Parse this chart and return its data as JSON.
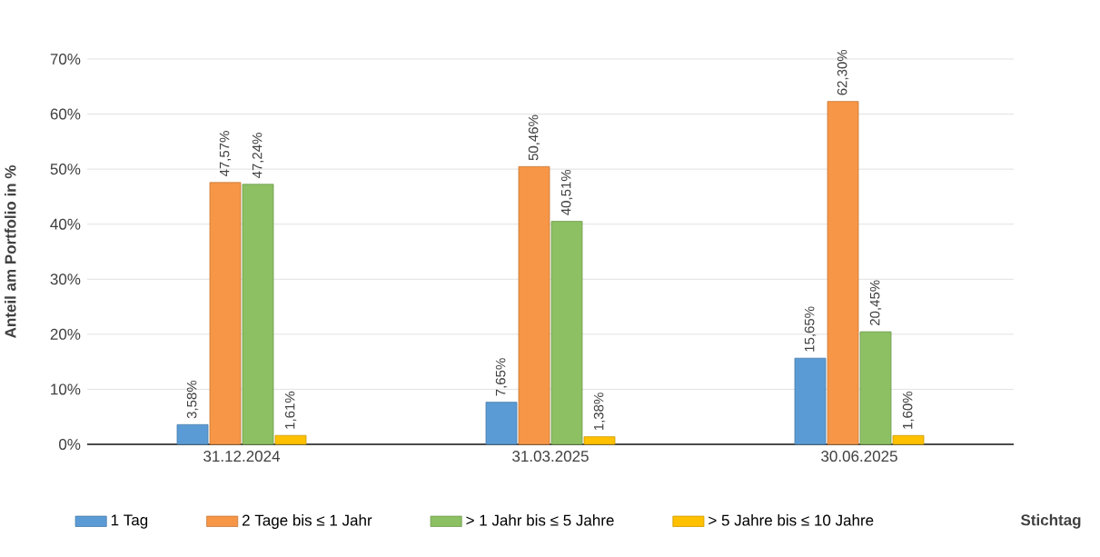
{
  "chart_data": {
    "type": "bar",
    "ylabel": "Anteil am Portfolio in %",
    "xlabel": "Stichtag",
    "categories": [
      "31.12.2024",
      "31.03.2025",
      "30.06.2025"
    ],
    "series": [
      {
        "name": "1 Tag",
        "color": "#5b9bd5",
        "values": [
          3.58,
          7.65,
          15.65
        ],
        "value_labels": [
          "3,58%",
          "7,65%",
          "15,65%"
        ]
      },
      {
        "name": "2 Tage bis ≤ 1 Jahr",
        "color": "#f79646",
        "values": [
          47.57,
          50.46,
          62.3
        ],
        "value_labels": [
          "47,57%",
          "50,46%",
          "62,30%"
        ]
      },
      {
        "name": "> 1 Jahr bis ≤ 5 Jahre",
        "color": "#8cc063",
        "values": [
          47.24,
          40.51,
          20.45
        ],
        "value_labels": [
          "47,24%",
          "40,51%",
          "20,45%"
        ]
      },
      {
        "name": "> 5 Jahre bis ≤ 10 Jahre",
        "color": "#ffc000",
        "values": [
          1.61,
          1.38,
          1.6
        ],
        "value_labels": [
          "1,61%",
          "1,38%",
          "1,60%"
        ]
      }
    ],
    "ylim": [
      0,
      70
    ],
    "yticks": [
      {
        "value": 0,
        "label": "0%"
      },
      {
        "value": 10,
        "label": "10%"
      },
      {
        "value": 20,
        "label": "20%"
      },
      {
        "value": 30,
        "label": "30%"
      },
      {
        "value": 40,
        "label": "40%"
      },
      {
        "value": 50,
        "label": "50%"
      },
      {
        "value": 60,
        "label": "60%"
      },
      {
        "value": 70,
        "label": "70%"
      }
    ],
    "grid": "y",
    "legend": "bottom"
  }
}
